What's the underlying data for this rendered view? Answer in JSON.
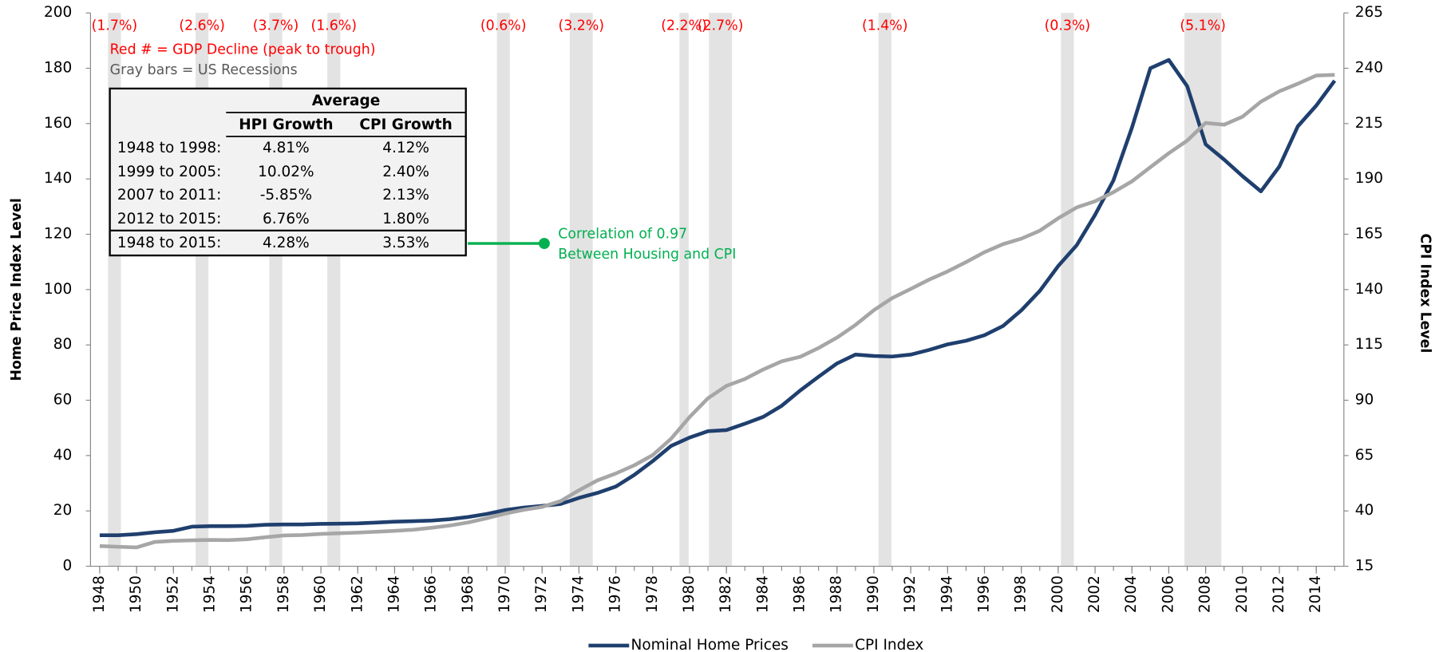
{
  "chart_data": {
    "type": "line",
    "y_label": "Home Price Index Level",
    "y2_label": "CPI Index Level",
    "x": [
      1948,
      1949,
      1950,
      1951,
      1952,
      1953,
      1954,
      1955,
      1956,
      1957,
      1958,
      1959,
      1960,
      1961,
      1962,
      1963,
      1964,
      1965,
      1966,
      1967,
      1968,
      1969,
      1970,
      1971,
      1972,
      1973,
      1974,
      1975,
      1976,
      1977,
      1978,
      1979,
      1980,
      1981,
      1982,
      1983,
      1984,
      1985,
      1986,
      1987,
      1988,
      1989,
      1990,
      1991,
      1992,
      1993,
      1994,
      1995,
      1996,
      1997,
      1998,
      1999,
      2000,
      2001,
      2002,
      2003,
      2004,
      2005,
      2006,
      2007,
      2008,
      2009,
      2010,
      2011,
      2012,
      2013,
      2014,
      2015
    ],
    "xlim": [
      1947.5,
      2015.5
    ],
    "xticks": [
      1948,
      1950,
      1952,
      1954,
      1956,
      1958,
      1960,
      1962,
      1964,
      1966,
      1968,
      1970,
      1972,
      1974,
      1976,
      1978,
      1980,
      1982,
      1984,
      1986,
      1988,
      1990,
      1992,
      1994,
      1996,
      1998,
      2000,
      2002,
      2004,
      2006,
      2008,
      2010,
      2012,
      2014
    ],
    "ylim": [
      0,
      200
    ],
    "yticks": [
      0,
      20,
      40,
      60,
      80,
      100,
      120,
      140,
      160,
      180,
      200
    ],
    "y2lim": [
      15,
      265
    ],
    "y2ticks": [
      15,
      40,
      65,
      90,
      115,
      140,
      165,
      190,
      215,
      240,
      265
    ],
    "legend": "bottom",
    "series": [
      {
        "name": "Nominal Home Prices",
        "color": "#1f3f6e",
        "values": [
          11.2,
          11.2,
          11.6,
          12.3,
          12.8,
          14.3,
          14.5,
          14.5,
          14.6,
          15.0,
          15.1,
          15.1,
          15.3,
          15.4,
          15.5,
          15.8,
          16.1,
          16.3,
          16.5,
          17.0,
          17.8,
          18.9,
          20.3,
          21.2,
          21.8,
          22.5,
          24.7,
          26.5,
          28.8,
          33.0,
          38.0,
          43.5,
          46.5,
          48.8,
          49.2,
          51.5,
          54.0,
          58.0,
          63.5,
          68.5,
          73.3,
          76.5,
          76.0,
          75.8,
          76.5,
          78.2,
          80.2,
          81.5,
          83.5,
          86.8,
          92.5,
          99.5,
          108.5,
          116.0,
          127.0,
          139.5,
          158.5,
          180.0,
          183.0,
          173.5,
          152.5,
          147.0,
          141.0,
          135.5,
          144.5,
          159.0,
          166.5,
          175.5
        ]
      },
      {
        "name": "CPI Index",
        "color": "#a6a6a6",
        "axis": "y2",
        "values": [
          24.1,
          23.8,
          23.5,
          26.0,
          26.5,
          26.7,
          26.9,
          26.8,
          27.2,
          28.1,
          28.9,
          29.1,
          29.6,
          29.9,
          30.2,
          30.6,
          31.0,
          31.5,
          32.4,
          33.4,
          34.8,
          36.7,
          38.8,
          40.5,
          41.8,
          44.4,
          49.3,
          53.8,
          56.9,
          60.6,
          65.2,
          72.6,
          82.4,
          90.9,
          96.5,
          99.6,
          103.9,
          107.6,
          109.6,
          113.6,
          118.3,
          124.0,
          130.7,
          136.2,
          140.3,
          144.5,
          148.2,
          152.4,
          156.9,
          160.5,
          163.0,
          166.6,
          172.2,
          177.1,
          179.9,
          184.0,
          188.9,
          195.3,
          201.6,
          207.3,
          215.3,
          214.5,
          218.1,
          224.9,
          229.6,
          233.0,
          236.7,
          237.0
        ]
      }
    ],
    "recession_color": "#e3e3e3",
    "recessions": [
      {
        "start": 1948.45,
        "end": 1949.15,
        "label": "(1.7%)"
      },
      {
        "start": 1953.2,
        "end": 1953.9,
        "label": "(2.6%)"
      },
      {
        "start": 1957.2,
        "end": 1957.9,
        "label": "(3.7%)"
      },
      {
        "start": 1960.35,
        "end": 1961.05,
        "label": "(1.6%)"
      },
      {
        "start": 1969.55,
        "end": 1970.25,
        "label": "(0.6%)"
      },
      {
        "start": 1973.5,
        "end": 1974.75,
        "label": "(3.2%)"
      },
      {
        "start": 1979.45,
        "end": 1979.95,
        "label": "(2.2%)"
      },
      {
        "start": 1981.05,
        "end": 1982.3,
        "label": "(2.7%)"
      },
      {
        "start": 1990.25,
        "end": 1990.95,
        "label": "(1.4%)"
      },
      {
        "start": 2000.15,
        "end": 2000.85,
        "label": "(0.3%)"
      },
      {
        "start": 2006.85,
        "end": 2008.85,
        "label": "(5.1%)"
      }
    ],
    "notes": [
      "Red # = GDP Decline (peak to trough)",
      "Gray bars = US Recessions"
    ],
    "annotation": {
      "lines": [
        "Correlation of 0.97",
        "Between Housing and CPI"
      ],
      "color": "#00b050"
    },
    "table": {
      "group_header": "Average",
      "columns": [
        "HPI Growth",
        "CPI Growth"
      ],
      "rows": [
        [
          "1948 to 1998:",
          "4.81%",
          "4.12%"
        ],
        [
          "1999 to 2005:",
          "10.02%",
          "2.40%"
        ],
        [
          "2007 to 2011:",
          "-5.85%",
          "2.13%"
        ],
        [
          "2012 to 2015:",
          "6.76%",
          "1.80%"
        ],
        [
          "1948 to 2015:",
          "4.28%",
          "3.53%"
        ]
      ]
    }
  }
}
